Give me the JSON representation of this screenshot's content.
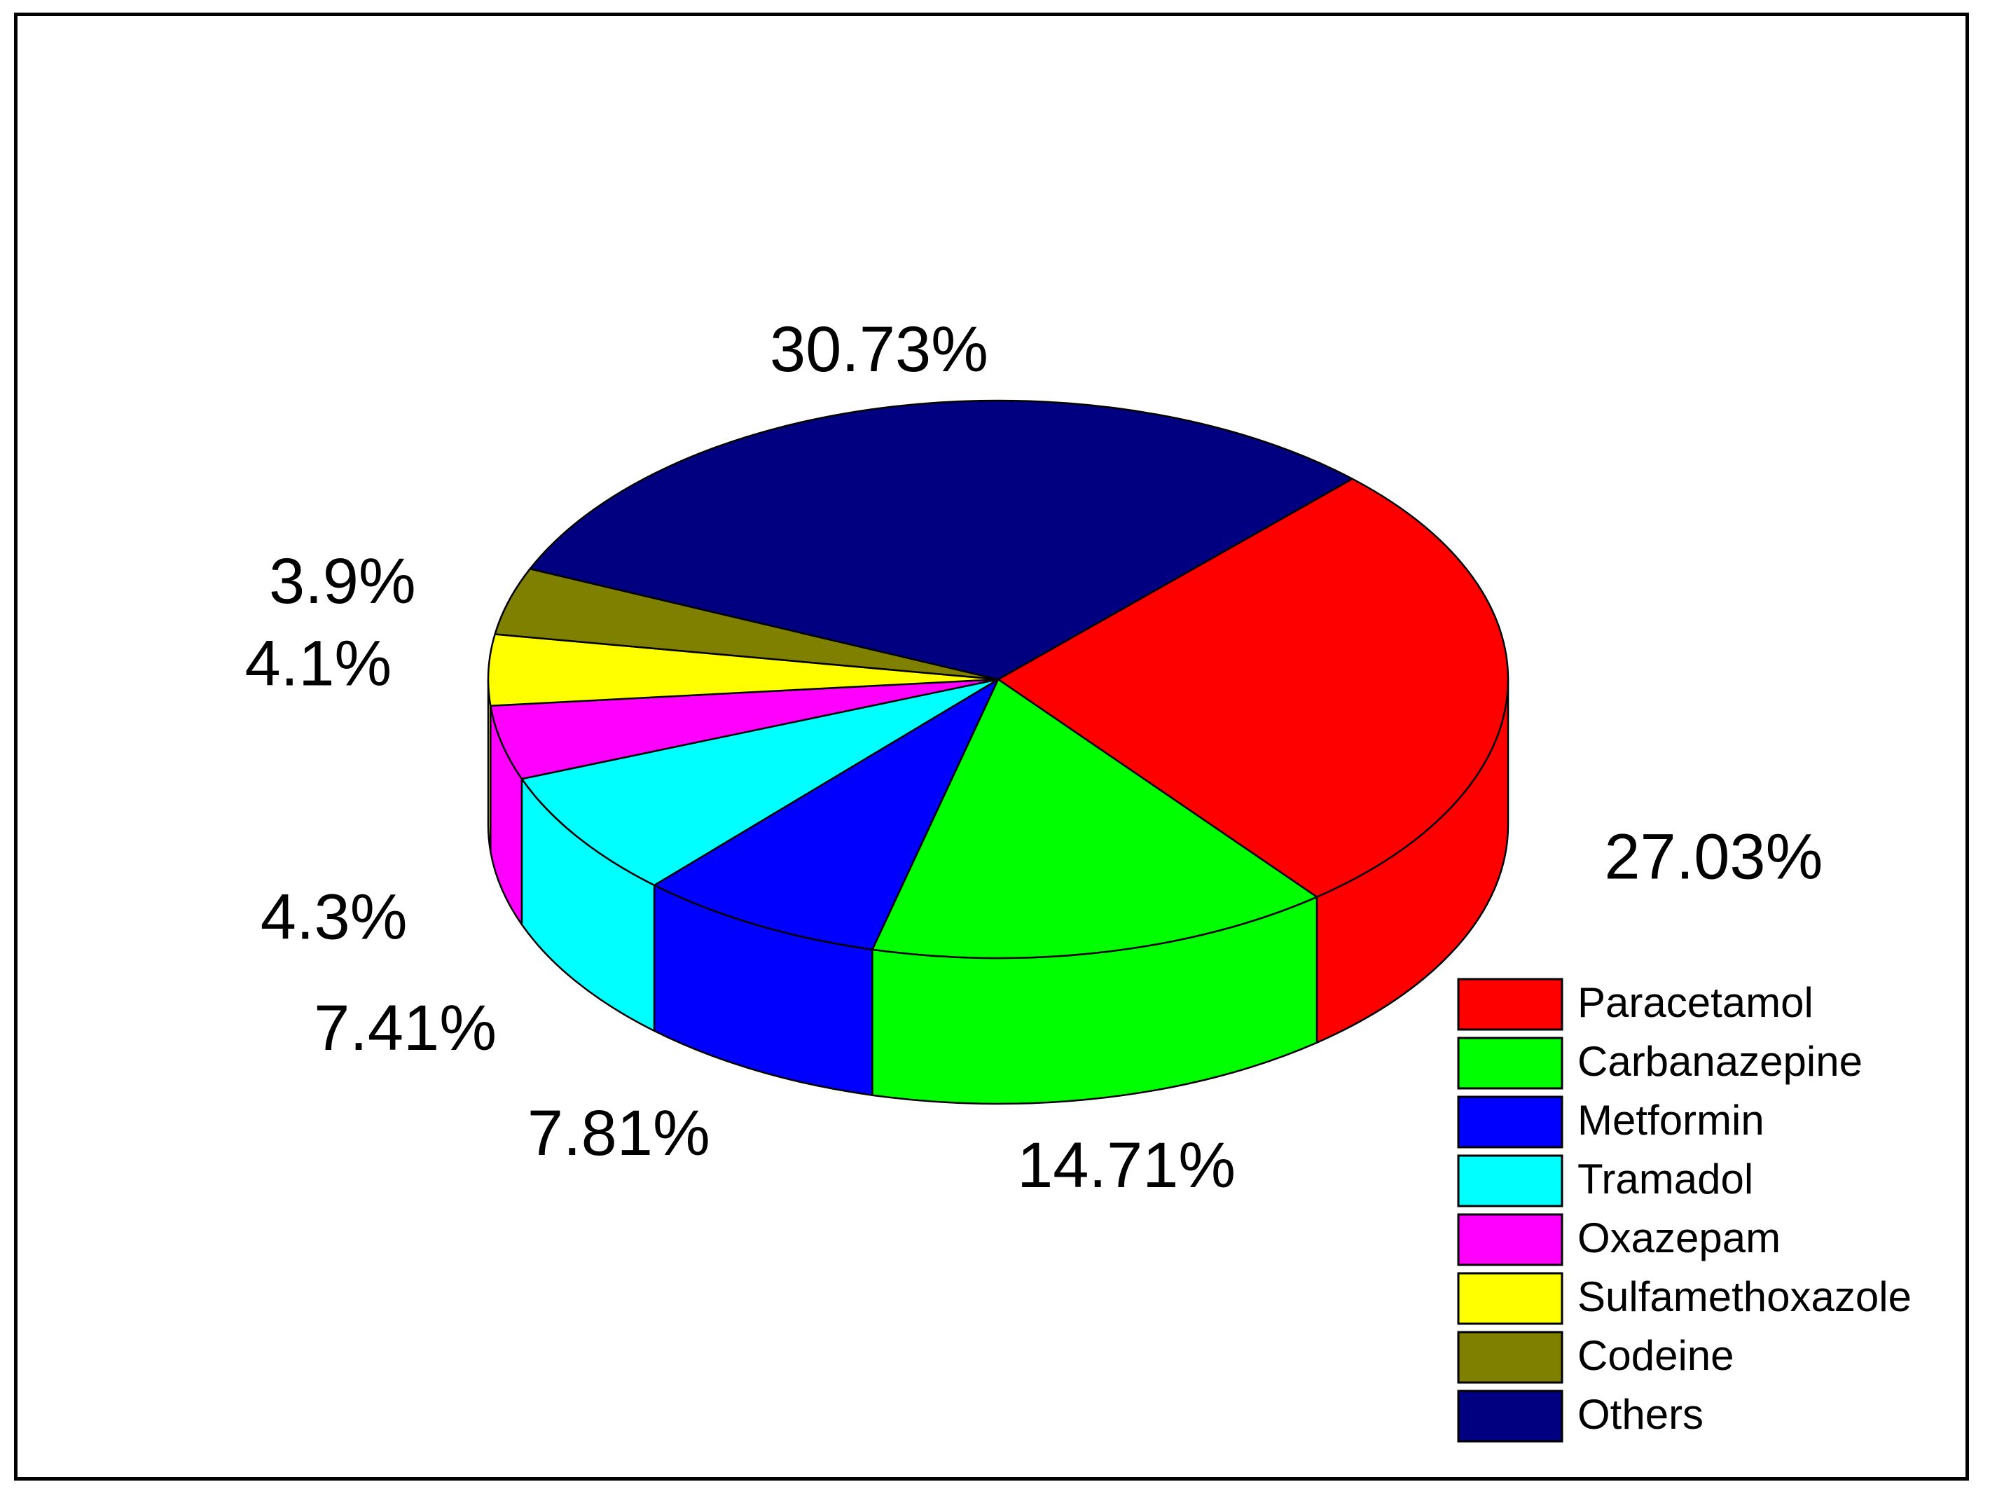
{
  "chart_data": {
    "type": "pie",
    "style": "3d",
    "legend_position": "bottom-right",
    "slices": [
      {
        "label": "Paracetamol",
        "value": 27.03,
        "display": "27.03%",
        "color": "#ff0000"
      },
      {
        "label": "Carbanazepine",
        "value": 14.71,
        "display": "14.71%",
        "color": "#00ff00"
      },
      {
        "label": "Metformin",
        "value": 7.81,
        "display": "7.81%",
        "color": "#0000ff"
      },
      {
        "label": "Tramadol",
        "value": 7.41,
        "display": "7.41%",
        "color": "#00ffff"
      },
      {
        "label": "Oxazepam",
        "value": 4.3,
        "display": "4.3%",
        "color": "#ff00ff"
      },
      {
        "label": "Sulfamethoxazole",
        "value": 4.1,
        "display": "4.1%",
        "color": "#ffff00"
      },
      {
        "label": "Codeine",
        "value": 3.9,
        "display": "3.9%",
        "color": "#808000"
      },
      {
        "label": "Others",
        "value": 30.73,
        "display": "30.73%",
        "color": "#000080"
      }
    ]
  }
}
